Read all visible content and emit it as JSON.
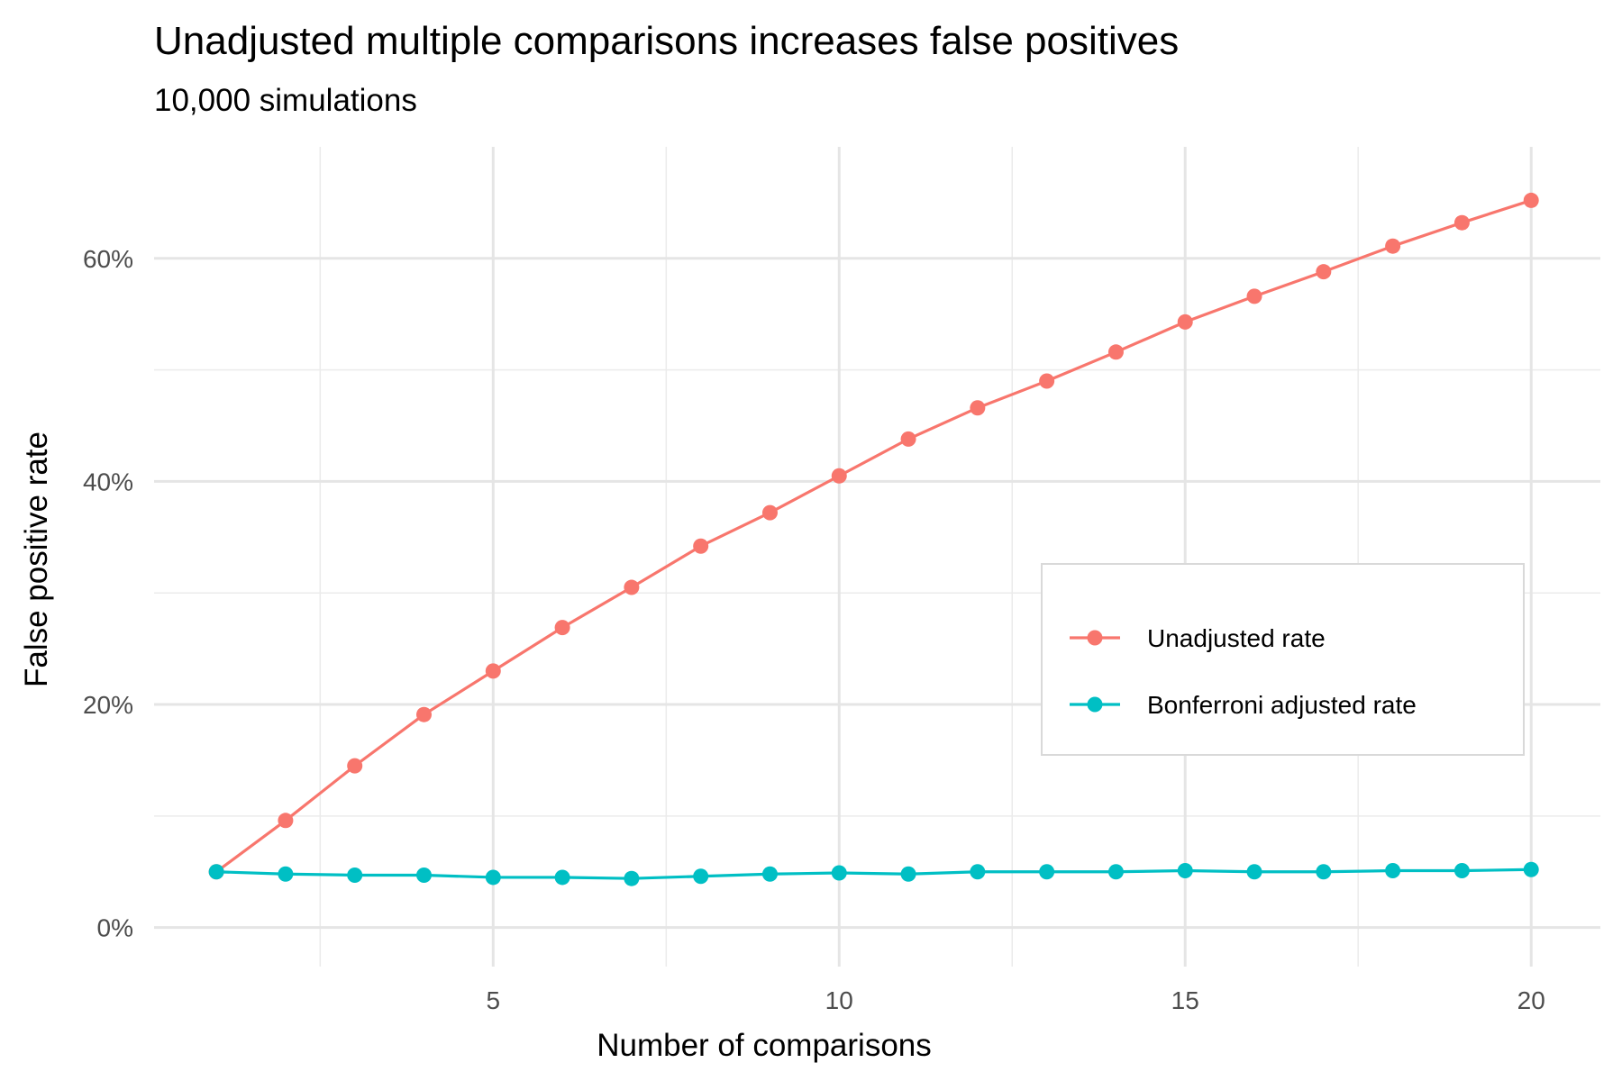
{
  "chart_data": {
    "type": "line",
    "title": "Unadjusted multiple comparisons increases false positives",
    "subtitle": "10,000 simulations",
    "xlabel": "Number of comparisons",
    "ylabel": "False positive rate",
    "x": [
      1,
      2,
      3,
      4,
      5,
      6,
      7,
      8,
      9,
      10,
      11,
      12,
      13,
      14,
      15,
      16,
      17,
      18,
      19,
      20
    ],
    "xlim": [
      0.1,
      21
    ],
    "ylim": [
      -0.035,
      0.7
    ],
    "x_ticks": [
      5,
      10,
      15,
      20
    ],
    "x_tick_labels": [
      "5",
      "10",
      "15",
      "20"
    ],
    "y_ticks": [
      0,
      0.2,
      0.4,
      0.6
    ],
    "y_tick_labels": [
      "0%",
      "20%",
      "40%",
      "60%"
    ],
    "grid": true,
    "legend_position": "center-right",
    "series": [
      {
        "name": "Unadjusted rate",
        "color": "#F8766D",
        "values": [
          0.05,
          0.096,
          0.145,
          0.191,
          0.23,
          0.269,
          0.305,
          0.342,
          0.372,
          0.405,
          0.438,
          0.466,
          0.49,
          0.516,
          0.543,
          0.566,
          0.588,
          0.611,
          0.632,
          0.652
        ]
      },
      {
        "name": "Bonferroni adjusted rate",
        "color": "#00BFC4",
        "values": [
          0.05,
          0.048,
          0.047,
          0.047,
          0.045,
          0.045,
          0.044,
          0.046,
          0.048,
          0.049,
          0.048,
          0.05,
          0.05,
          0.05,
          0.051,
          0.05,
          0.05,
          0.051,
          0.051,
          0.052
        ]
      }
    ]
  }
}
